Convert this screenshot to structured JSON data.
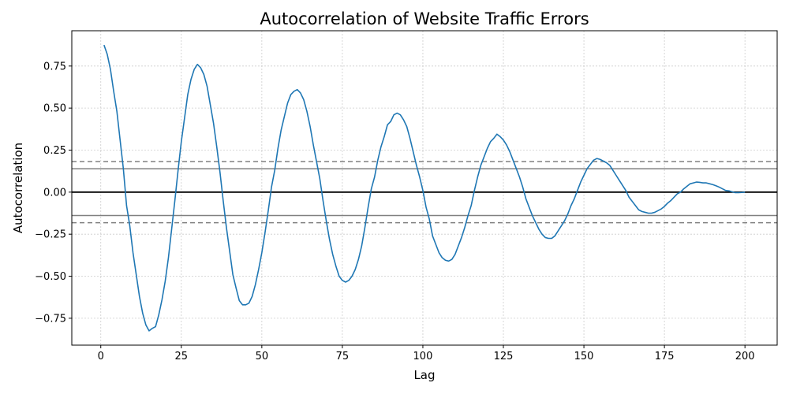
{
  "chart_data": {
    "type": "line",
    "title": "Autocorrelation of Website Traffic Errors",
    "xlabel": "Lag",
    "ylabel": "Autocorrelation",
    "xlim": [
      -9,
      210
    ],
    "ylim": [
      -0.91,
      0.96
    ],
    "xticks": [
      0,
      25,
      50,
      75,
      100,
      125,
      150,
      175,
      200
    ],
    "yticks": [
      -0.75,
      -0.5,
      -0.25,
      0.0,
      0.25,
      0.5,
      0.75
    ],
    "ytick_labels": [
      "−0.75",
      "−0.50",
      "−0.25",
      "0.00",
      "0.25",
      "0.50",
      "0.75"
    ],
    "grid": true,
    "colors": {
      "series": "#1f77b4",
      "zero": "#000000",
      "bands": "#808080",
      "grid": "#cccccc"
    },
    "reference_lines": {
      "zero": 0.0,
      "solid_band": 0.139,
      "dashed_band": 0.182
    },
    "series": [
      {
        "x": [
          1,
          2,
          3,
          4,
          5,
          6,
          7,
          8,
          9,
          10,
          11,
          12,
          13,
          14,
          15,
          16,
          17,
          18,
          19,
          20,
          21,
          22,
          23,
          24,
          25,
          26,
          27,
          28,
          29,
          30,
          31,
          32,
          33,
          34,
          35,
          36,
          37,
          38,
          39,
          40,
          41,
          42,
          43,
          44,
          45,
          46,
          47,
          48,
          49,
          50,
          51,
          52,
          53,
          54,
          55,
          56,
          57,
          58,
          59,
          60,
          61,
          62,
          63,
          64,
          65,
          66,
          67,
          68,
          69,
          70,
          71,
          72,
          73,
          74,
          75,
          76,
          77,
          78,
          79,
          80,
          81,
          82,
          83,
          84,
          85,
          86,
          87,
          88,
          89,
          90,
          91,
          92,
          93,
          94,
          95,
          96,
          97,
          98,
          99,
          100,
          101,
          102,
          103,
          104,
          105,
          106,
          107,
          108,
          109,
          110,
          111,
          112,
          113,
          114,
          115,
          116,
          117,
          118,
          119,
          120,
          121,
          122,
          123,
          124,
          125,
          126,
          127,
          128,
          129,
          130,
          131,
          132,
          133,
          134,
          135,
          136,
          137,
          138,
          139,
          140,
          141,
          142,
          143,
          144,
          145,
          146,
          147,
          148,
          149,
          150,
          151,
          152,
          153,
          154,
          155,
          156,
          157,
          158,
          159,
          160,
          161,
          162,
          163,
          164,
          165,
          166,
          167,
          168,
          169,
          170,
          171,
          172,
          173,
          174,
          175,
          176,
          177,
          178,
          179,
          180,
          181,
          182,
          183,
          184,
          185,
          186,
          187,
          188,
          189,
          190,
          191,
          192,
          193,
          194,
          195,
          196,
          197,
          198,
          199,
          200
        ],
        "y": [
          0.875,
          0.82,
          0.73,
          0.6,
          0.48,
          0.31,
          0.14,
          -0.08,
          -0.2,
          -0.36,
          -0.49,
          -0.62,
          -0.72,
          -0.79,
          -0.825,
          -0.81,
          -0.8,
          -0.73,
          -0.64,
          -0.53,
          -0.39,
          -0.22,
          -0.05,
          0.13,
          0.3,
          0.44,
          0.58,
          0.67,
          0.73,
          0.76,
          0.74,
          0.7,
          0.63,
          0.52,
          0.41,
          0.27,
          0.12,
          -0.05,
          -0.21,
          -0.35,
          -0.49,
          -0.57,
          -0.645,
          -0.67,
          -0.67,
          -0.66,
          -0.62,
          -0.55,
          -0.46,
          -0.36,
          -0.24,
          -0.11,
          0.03,
          0.13,
          0.26,
          0.37,
          0.45,
          0.53,
          0.58,
          0.6,
          0.61,
          0.59,
          0.55,
          0.48,
          0.39,
          0.28,
          0.18,
          0.08,
          -0.05,
          -0.17,
          -0.28,
          -0.37,
          -0.44,
          -0.5,
          -0.525,
          -0.535,
          -0.525,
          -0.5,
          -0.46,
          -0.4,
          -0.32,
          -0.21,
          -0.09,
          0.02,
          0.09,
          0.19,
          0.27,
          0.33,
          0.4,
          0.42,
          0.46,
          0.47,
          0.46,
          0.43,
          0.39,
          0.32,
          0.24,
          0.16,
          0.09,
          0.01,
          -0.09,
          -0.16,
          -0.26,
          -0.31,
          -0.36,
          -0.39,
          -0.405,
          -0.41,
          -0.4,
          -0.37,
          -0.32,
          -0.27,
          -0.21,
          -0.14,
          -0.08,
          0.01,
          0.09,
          0.16,
          0.21,
          0.26,
          0.3,
          0.32,
          0.345,
          0.33,
          0.31,
          0.28,
          0.24,
          0.19,
          0.14,
          0.09,
          0.03,
          -0.04,
          -0.09,
          -0.14,
          -0.18,
          -0.22,
          -0.25,
          -0.27,
          -0.275,
          -0.275,
          -0.26,
          -0.23,
          -0.2,
          -0.17,
          -0.13,
          -0.08,
          -0.04,
          0.01,
          0.06,
          0.1,
          0.14,
          0.165,
          0.19,
          0.2,
          0.195,
          0.185,
          0.175,
          0.16,
          0.13,
          0.1,
          0.07,
          0.04,
          0.01,
          -0.03,
          -0.055,
          -0.08,
          -0.105,
          -0.115,
          -0.12,
          -0.125,
          -0.125,
          -0.12,
          -0.11,
          -0.1,
          -0.085,
          -0.065,
          -0.05,
          -0.03,
          -0.01,
          0.0,
          0.02,
          0.035,
          0.05,
          0.055,
          0.06,
          0.058,
          0.055,
          0.055,
          0.05,
          0.045,
          0.038,
          0.03,
          0.02,
          0.01,
          0.008,
          0.002,
          -0.003,
          -0.003,
          -0.002,
          0.0
        ]
      }
    ]
  }
}
